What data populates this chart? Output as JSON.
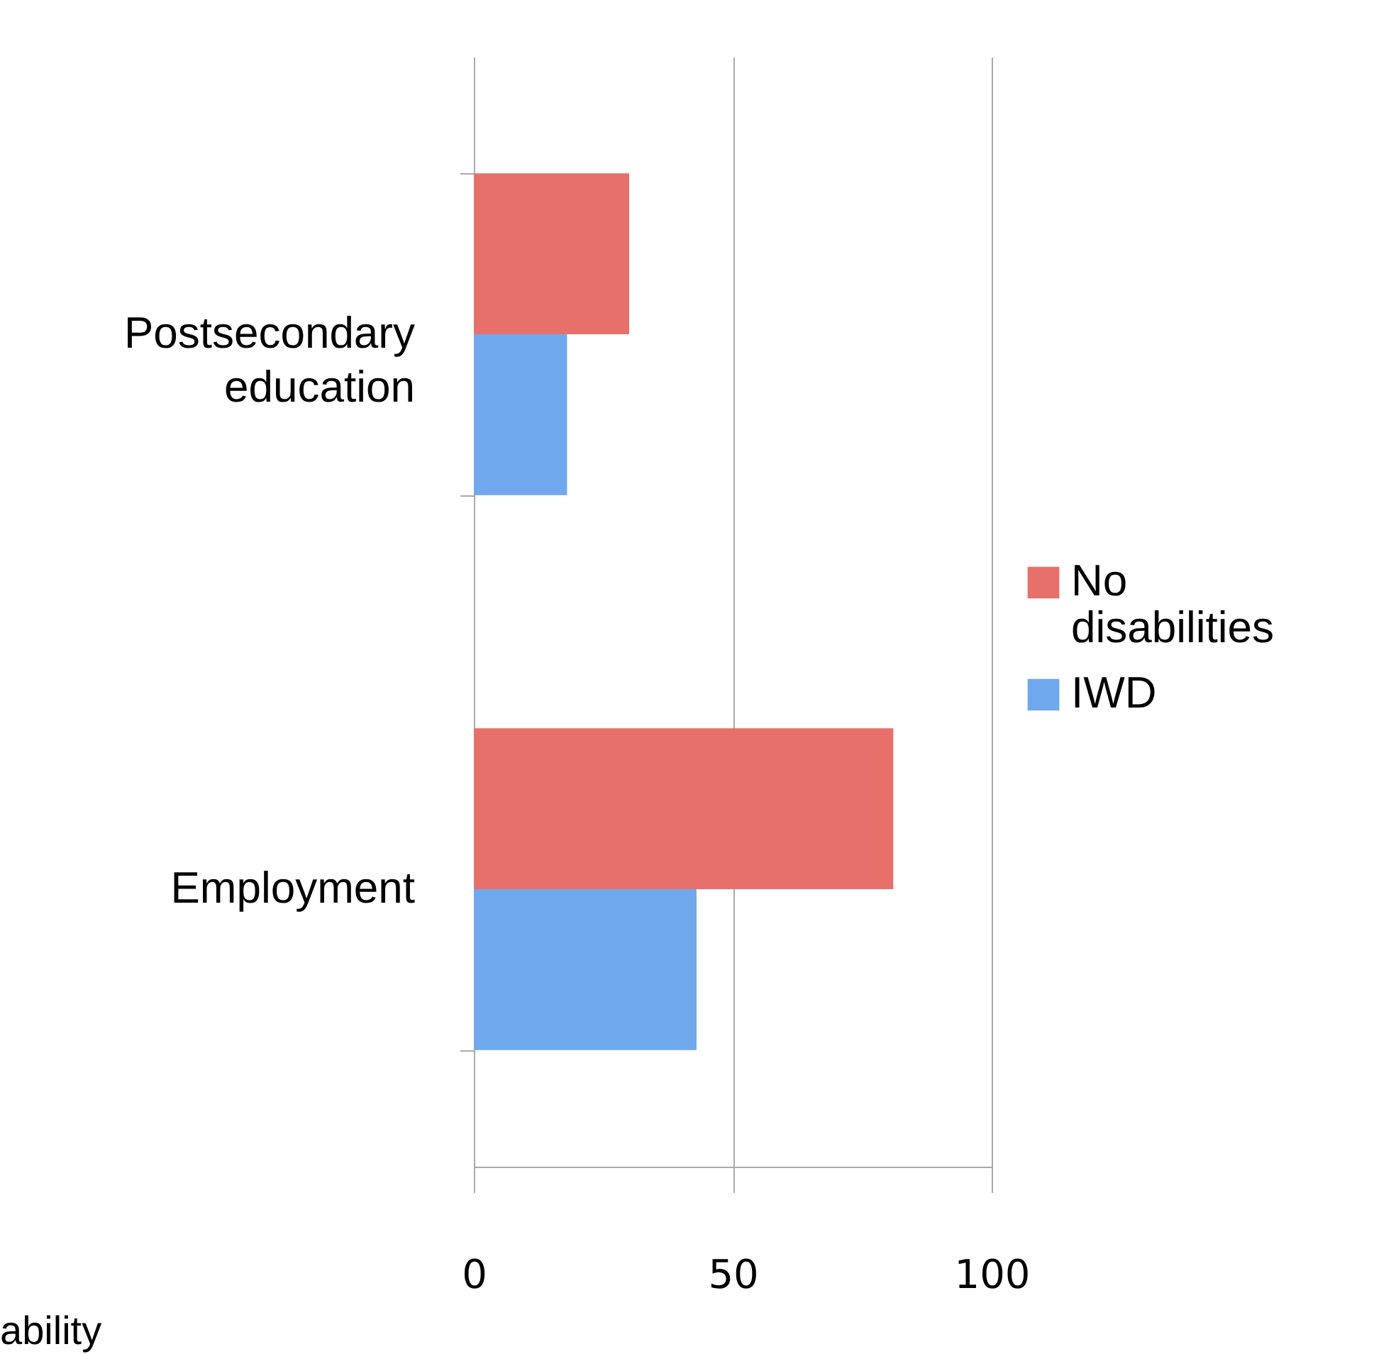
{
  "chart_data": {
    "type": "bar",
    "orientation": "horizontal",
    "categories": [
      "Postsecondary education",
      "Employment"
    ],
    "series": [
      {
        "name": "No disabilities",
        "color": "#e8706a",
        "values": [
          30,
          81
        ]
      },
      {
        "name": "IWD",
        "color": "#6fa8ec",
        "values": [
          18,
          43
        ]
      }
    ],
    "xlim": [
      0,
      100
    ],
    "xticks": [
      0,
      50,
      100
    ],
    "grid": "x",
    "legend": "right",
    "annotations": [
      "ability"
    ]
  }
}
